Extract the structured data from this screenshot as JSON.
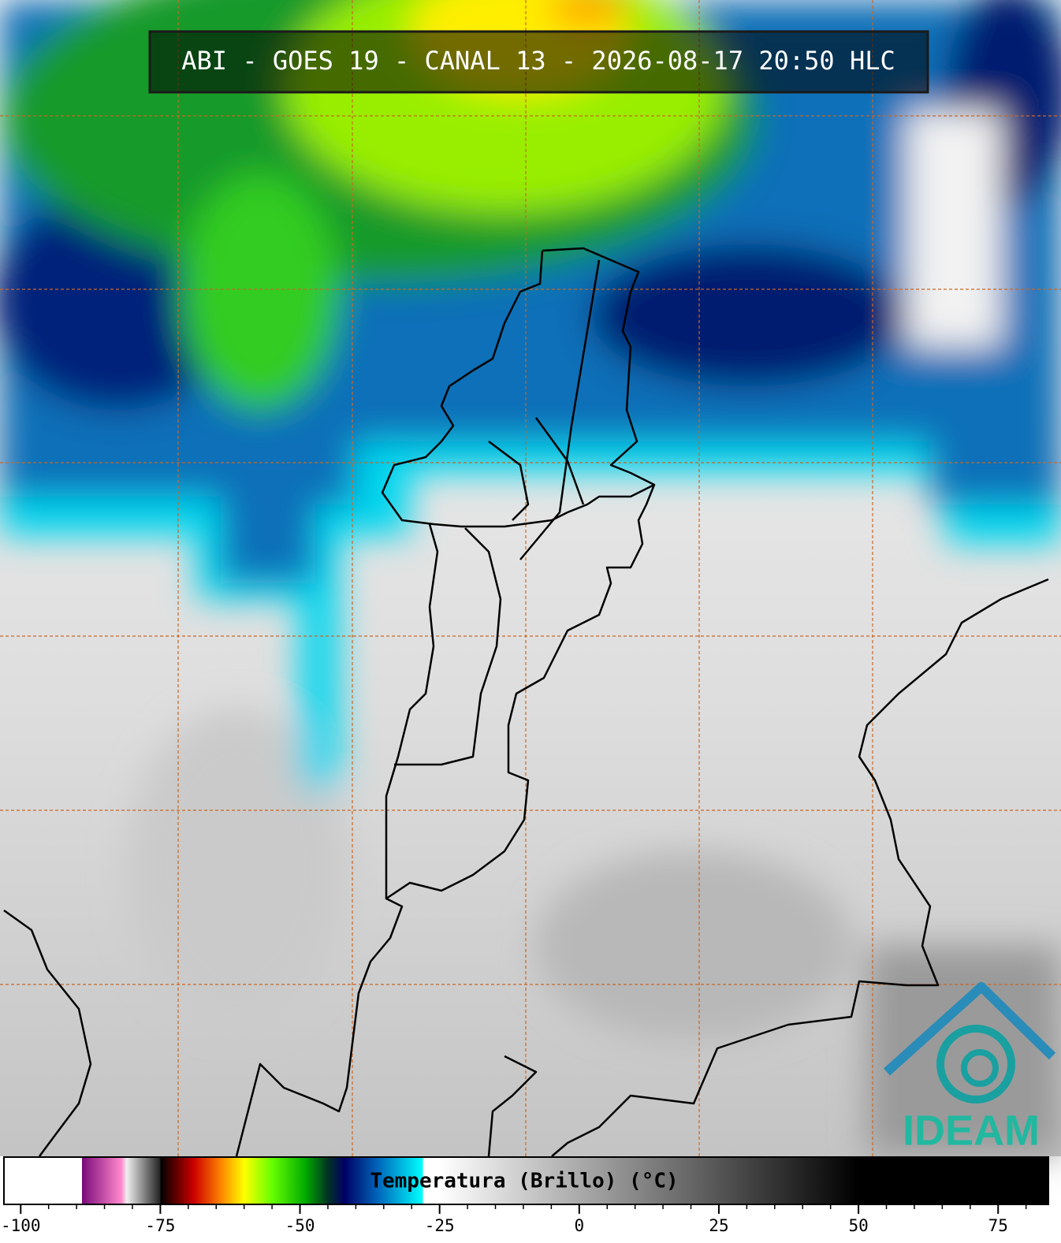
{
  "title": "ABI - GOES 19 - CANAL 13 - 2026-08-17 20:50 HLC",
  "logo": "IDEAM",
  "colorbar": {
    "label": "Temperatura (Brillo) (°C)",
    "xlim": [
      -103,
      84
    ],
    "ticks": [
      -100,
      -75,
      -50,
      -25,
      0,
      25,
      50,
      75
    ],
    "minor_ticks": [
      -95,
      -90,
      -85,
      -80,
      -70,
      -65,
      -60,
      -55,
      -45,
      -40,
      -35,
      -30,
      -20,
      -15,
      -10,
      -5,
      5,
      10,
      15,
      20,
      30,
      35,
      40,
      45,
      55,
      60,
      65,
      70,
      80
    ],
    "colormap": [
      [
        -103,
        "#ffffff"
      ],
      [
        -89,
        "#ffffff"
      ],
      [
        -89,
        "#7a0a7a"
      ],
      [
        -82,
        "#ff88cc"
      ],
      [
        -81,
        "#eeeeee"
      ],
      [
        -75,
        "#222222"
      ],
      [
        -75,
        "#000000"
      ],
      [
        -69,
        "#cc0000"
      ],
      [
        -64,
        "#ff8800"
      ],
      [
        -60,
        "#ffff00"
      ],
      [
        -55,
        "#66ff00"
      ],
      [
        -49,
        "#00aa00"
      ],
      [
        -45,
        "#003322"
      ],
      [
        -42,
        "#000066"
      ],
      [
        -36,
        "#0066bb"
      ],
      [
        -28,
        "#00ffff"
      ],
      [
        -28,
        "#ffffff"
      ],
      [
        -25,
        "#ffffff"
      ],
      [
        50,
        "#000000"
      ],
      [
        84,
        "#000000"
      ]
    ]
  }
}
